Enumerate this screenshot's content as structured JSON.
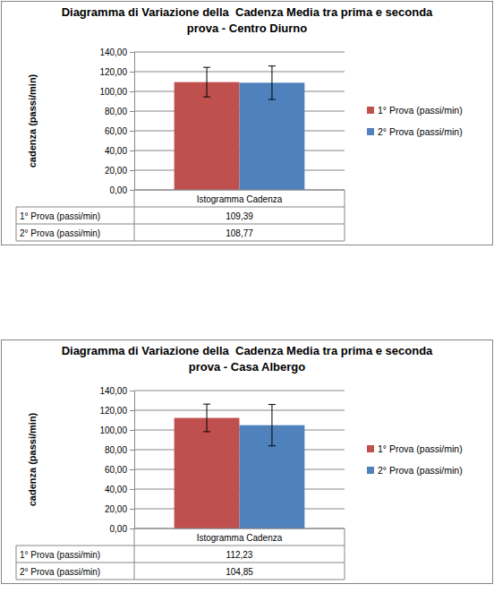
{
  "chart_data": [
    {
      "type": "bar",
      "title": "Diagramma di Variazione della  Cadenza Media tra prima e seconda prova - Centro Diurno",
      "y_label": "cadenza (passi/min)",
      "categories": [
        "Istogramma Cadenza"
      ],
      "series": [
        {
          "name": "1° Prova (passi/min)",
          "color": "#c0504d",
          "values": [
            109.39
          ],
          "value_labels": [
            "109,39"
          ],
          "errors": [
            15
          ]
        },
        {
          "name": "2° Prova (passi/min)",
          "color": "#4f81bd",
          "values": [
            108.77
          ],
          "value_labels": [
            "108,77"
          ],
          "errors": [
            17
          ]
        }
      ],
      "ylim": [
        0,
        140
      ],
      "yticks": [
        {
          "value": 0,
          "label": "0,00"
        },
        {
          "value": 20,
          "label": "20,00"
        },
        {
          "value": 40,
          "label": "40,00"
        },
        {
          "value": 60,
          "label": "60,00"
        },
        {
          "value": 80,
          "label": "80,00"
        },
        {
          "value": 100,
          "label": "100,00"
        },
        {
          "value": 120,
          "label": "120,00"
        },
        {
          "value": 140,
          "label": "140,00"
        }
      ],
      "grid": true,
      "legend": "right",
      "data_labels": true
    },
    {
      "type": "bar",
      "title": "Diagramma di Variazione della  Cadenza Media tra prima e seconda prova - Casa Albergo",
      "y_label": "cadenza (passi/min)",
      "categories": [
        "Istogramma Cadenza"
      ],
      "series": [
        {
          "name": "1° Prova (passi/min)",
          "color": "#c0504d",
          "values": [
            112.23
          ],
          "value_labels": [
            "112,23"
          ],
          "errors": [
            14
          ]
        },
        {
          "name": "2° Prova (passi/min)",
          "color": "#4f81bd",
          "values": [
            104.85
          ],
          "value_labels": [
            "104,85"
          ],
          "errors": [
            21
          ]
        }
      ],
      "ylim": [
        0,
        140
      ],
      "yticks": [
        {
          "value": 0,
          "label": "0,00"
        },
        {
          "value": 20,
          "label": "20,00"
        },
        {
          "value": 40,
          "label": "40,00"
        },
        {
          "value": 60,
          "label": "60,00"
        },
        {
          "value": 80,
          "label": "80,00"
        },
        {
          "value": 100,
          "label": "100,00"
        },
        {
          "value": 120,
          "label": "120,00"
        },
        {
          "value": 140,
          "label": "140,00"
        }
      ],
      "grid": true,
      "legend": "right",
      "data_labels": true
    }
  ]
}
